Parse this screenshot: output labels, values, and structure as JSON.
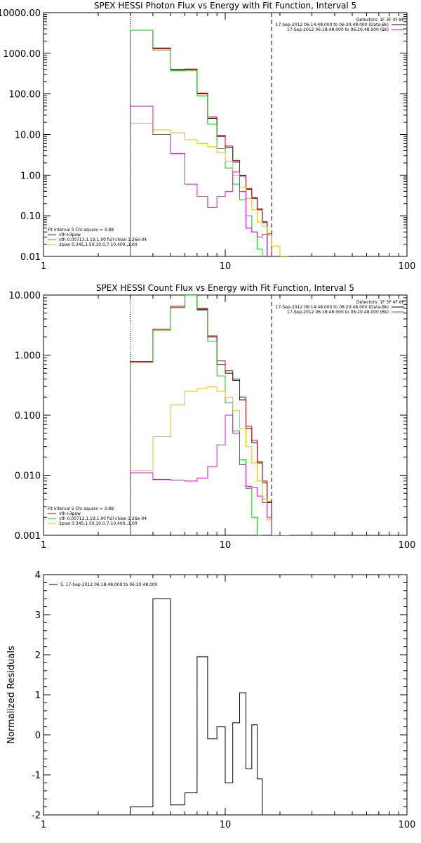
{
  "chart_data": [
    {
      "type": "line",
      "title": "SPEX HESSI Photon Flux vs Energy with Fit Function, Interval 5",
      "xscale": "log",
      "yscale": "log",
      "xlim": [
        1,
        100
      ],
      "ylim": [
        0.01,
        10000
      ],
      "xticks": [
        1,
        10,
        100
      ],
      "xticklabels": [
        "1",
        "10",
        "100"
      ],
      "yticks": [
        0.01,
        0.1,
        1,
        10,
        100,
        1000,
        10000
      ],
      "yticklabels": [
        "0.01",
        "0.10",
        "1.00",
        "10.00",
        "100.00",
        "1000.00",
        "10000.00"
      ],
      "vlines": [
        {
          "x": 3.0,
          "style": "dotted"
        },
        {
          "x": 18.0,
          "style": "dashed"
        }
      ],
      "legend_top_right": [
        {
          "text": "Detectors: 1F 3F 4F 8F",
          "color": "#000000",
          "line": false
        },
        {
          "text": "17-Sep-2012 06:14:48.000 to 06:20:48.000 (Data-Bk)",
          "color": "#000000",
          "line": true
        },
        {
          "text": "17-Sep-2012 06:18:48.000 to 06:20:48.000 (Bk)",
          "color": "#e010e0",
          "line": true
        }
      ],
      "legend_bottom_left": [
        {
          "text": "Fit Interval 5   Chi-square = 3.88",
          "color": "#000000",
          "line": false
        },
        {
          "text": "vth+3pow",
          "color": "#cc0000",
          "line": true
        },
        {
          "text": "vth 0.00713,1.19,1.00  full chian 1.26e-04",
          "color": "#00cc00",
          "line": true
        },
        {
          "text": "3pow 0.345,1.50,10.0,7.10,400.,1.00",
          "color": "#e0c000",
          "line": true
        }
      ],
      "x_edges": [
        3,
        4,
        5,
        6,
        7,
        8,
        9,
        10,
        11,
        12,
        13,
        14,
        15,
        16,
        17,
        18,
        20,
        22.5
      ],
      "series": [
        {
          "name": "17-Sep-2012 06:14:48.000 to 06:20:48.000 (Data-Bk)",
          "color": "#000000",
          "values": [
            3700,
            1300,
            390,
            400,
            100,
            25,
            9,
            4.8,
            2.1,
            0.95,
            0.45,
            0.27,
            0.14,
            0.068,
            null,
            null,
            null
          ]
        },
        {
          "name": "vth+3pow",
          "color": "#cc0000",
          "values": [
            3700,
            1350,
            400,
            410,
            105,
            27,
            9.5,
            5.2,
            2.3,
            1.0,
            0.47,
            0.28,
            0.15,
            0.072,
            0.036,
            null,
            null
          ]
        },
        {
          "name": "vth 0.00713,1.19,1.00  full chian 1.26e-04",
          "color": "#00cc00",
          "values": [
            3700,
            1200,
            370,
            380,
            90,
            18,
            4.5,
            1.5,
            0.6,
            0.25,
            0.1,
            0.04,
            0.015,
            null,
            null,
            null,
            null
          ]
        },
        {
          "name": "3pow 0.345,1.50,10.0,7.10,400.,1.00",
          "color": "#e0c000",
          "values": [
            19,
            13,
            11,
            7.4,
            6,
            5,
            3.6,
            2.2,
            1.0,
            0.5,
            0.27,
            0.14,
            0.07,
            0.055,
            0.033,
            0.018,
            0.01
          ]
        },
        {
          "name": "17-Sep-2012 06:18:48.000 to 06:20:48.000 (Bk)",
          "color": "#e010e0",
          "values": [
            50,
            10,
            3.4,
            0.6,
            0.3,
            0.16,
            0.3,
            0.4,
            1.2,
            0.4,
            0.05,
            0.04,
            0.03,
            0.035,
            null,
            null,
            null
          ]
        }
      ]
    },
    {
      "type": "line",
      "title": "SPEX HESSI Count Flux vs Energy with Fit Function, Interval 5",
      "xscale": "log",
      "yscale": "log",
      "xlim": [
        1,
        100
      ],
      "ylim": [
        0.001,
        10
      ],
      "xticks": [
        1,
        10,
        100
      ],
      "xticklabels": [
        "1",
        "10",
        "100"
      ],
      "yticks": [
        0.001,
        0.01,
        0.1,
        1,
        10
      ],
      "yticklabels": [
        "0.001",
        "0.010",
        "0.100",
        "1.000",
        "10.000"
      ],
      "vlines": [
        {
          "x": 3.0,
          "style": "dotted"
        },
        {
          "x": 18.0,
          "style": "dashed"
        }
      ],
      "legend_top_right": [
        {
          "text": "Detectors: 1F 3F 4F 8F",
          "color": "#000000",
          "line": false
        },
        {
          "text": "17-Sep-2012 06:14:48.000 to 06:20:48.000 (Data-Bk)",
          "color": "#000000",
          "line": true
        },
        {
          "text": "17-Sep-2012 06:18:48.000 to 06:20:48.000 (Bk)",
          "color": "#e010e0",
          "line": true
        }
      ],
      "legend_bottom_left": [
        {
          "text": "Fit Interval 5   Chi-square = 3.88",
          "color": "#000000",
          "line": false
        },
        {
          "text": "vth+3pow",
          "color": "#cc0000",
          "line": true
        },
        {
          "text": "vth 0.00713,1.19,1.00  full chian 1.26e-04",
          "color": "#00cc00",
          "line": true
        },
        {
          "text": "3pow 0.345,1.50,10.0,7.10,400.,1.00",
          "color": "#e0c000",
          "line": true
        }
      ],
      "x_edges": [
        3,
        4,
        5,
        6,
        7,
        8,
        9,
        10,
        11,
        12,
        13,
        14,
        15,
        16,
        17,
        18,
        20,
        22.5
      ],
      "series": [
        {
          "name": "17-Sep-2012 06:14:48.000 to 06:20:48.000 (Data-Bk)",
          "color": "#000000",
          "values": [
            0.78,
            2.6,
            6.2,
            10.3,
            5.8,
            2.0,
            0.7,
            0.5,
            0.38,
            0.18,
            0.06,
            0.035,
            0.016,
            0.0075,
            0.0035,
            null,
            null
          ]
        },
        {
          "name": "vth+3pow",
          "color": "#cc0000",
          "values": [
            0.78,
            2.7,
            6.5,
            10.5,
            6.0,
            2.1,
            0.8,
            0.55,
            0.4,
            0.2,
            0.065,
            0.038,
            0.017,
            0.008,
            0.0037,
            null,
            null
          ]
        },
        {
          "name": "vth 0.00713,1.19,1.00  full chian 1.26e-04",
          "color": "#00cc00",
          "values": [
            0.76,
            2.6,
            6.2,
            10,
            5.6,
            1.7,
            0.45,
            0.16,
            0.055,
            0.018,
            0.006,
            0.002,
            0.0008,
            null,
            null,
            null,
            null
          ]
        },
        {
          "name": "3pow 0.345,1.50,10.0,7.10,400.,1.00",
          "color": "#e0c000",
          "values": [
            0.012,
            0.044,
            0.15,
            0.25,
            0.28,
            0.3,
            0.25,
            0.2,
            0.12,
            0.06,
            0.03,
            0.016,
            0.008,
            0.004,
            0.0018,
            0.001,
            0.001
          ]
        },
        {
          "name": "17-Sep-2012 06:18:48.000 to 06:20:48.000 (Bk)",
          "color": "#e010e0",
          "values": [
            0.011,
            0.0085,
            0.0083,
            0.008,
            0.009,
            0.014,
            0.032,
            0.1,
            0.05,
            0.015,
            0.0065,
            0.0063,
            0.0045,
            0.0035,
            0.002,
            null,
            null
          ]
        }
      ]
    },
    {
      "type": "line",
      "title": "",
      "ylabel": "Normalized Residuals",
      "xscale": "log",
      "yscale": "linear",
      "xlim": [
        1,
        100
      ],
      "ylim": [
        -2,
        4
      ],
      "xticks": [
        1,
        10,
        100
      ],
      "xticklabels": [
        "1",
        "10",
        "100"
      ],
      "yticks": [
        -2,
        -1,
        0,
        1,
        2,
        3,
        4
      ],
      "yticklabels": [
        "-2",
        "-1",
        "0",
        "1",
        "2",
        "3",
        "4"
      ],
      "legend_top_left": [
        {
          "text": "5. 17-Sep-2012 06:18:48.000 to 06:20:48.000",
          "color": "#000000",
          "line": true
        }
      ],
      "x_edges": [
        3,
        4,
        5,
        6,
        7,
        8,
        9,
        10,
        11,
        12,
        13,
        14,
        15,
        16,
        17,
        18
      ],
      "series": [
        {
          "name": "5. 17-Sep-2012 06:18:48.000 to 06:20:48.000",
          "color": "#000000",
          "values": [
            -1.8,
            3.4,
            -1.75,
            -1.45,
            1.95,
            -0.1,
            0.2,
            -1.2,
            0.3,
            1.05,
            -0.85,
            0.25,
            -1.1,
            -2,
            -2
          ]
        }
      ]
    }
  ]
}
